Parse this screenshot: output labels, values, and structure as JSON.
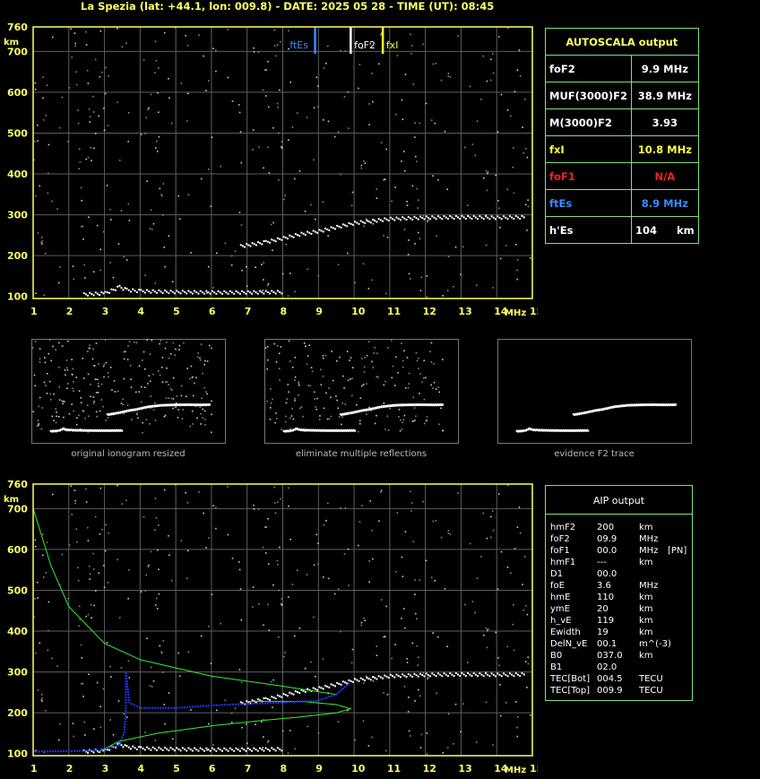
{
  "header": "La Spezia (lat: +44.1, lon: 009.8) - DATE: 2025 05 28 - TIME (UT): 08:45",
  "colors": {
    "axis": "#ffff66",
    "panel_border": "#7fe07f",
    "grid": "#5e5e5e",
    "ftEs": "#3a8cff",
    "foF2": "#ffffff",
    "fxI": "#ffff33",
    "foF1": "#ff2020",
    "profile_green": "#33ee33",
    "profile_blue": "#2233ff"
  },
  "plot_labels": {
    "km": "km",
    "mhz": "MHz",
    "ftEs": "ftEs",
    "foF2": "foF2",
    "fxI": "fxI"
  },
  "autoscala": {
    "title": "AUTOSCALA output",
    "rows": [
      {
        "label": "foF2",
        "value": "9.9 MHz",
        "color": "#ffffff"
      },
      {
        "label": "MUF(3000)F2",
        "value": "38.9 MHz",
        "color": "#ffffff"
      },
      {
        "label": "M(3000)F2",
        "value": "3.93",
        "color": "#ffffff"
      },
      {
        "label": "fxI",
        "value": "10.8 MHz",
        "color": "#ffff44"
      },
      {
        "label": "foF1",
        "value": "N/A",
        "color": "#ff2020"
      },
      {
        "label": "ftEs",
        "value": "8.9 MHz",
        "color": "#3a8cff"
      },
      {
        "label": "h'Es",
        "value": "104",
        "unit": "km",
        "color": "#ffffff"
      }
    ]
  },
  "thumb_captions": [
    "original ionogram resized",
    "eliminate multiple reflections",
    "evidence F2 trace"
  ],
  "aip": {
    "title": "AIP output",
    "rows": [
      [
        "hmF2",
        "200",
        "km",
        ""
      ],
      [
        "foF2",
        "09.9",
        "MHz",
        ""
      ],
      [
        "foF1",
        "00.0",
        "MHz",
        "[PN]"
      ],
      [
        "hmF1",
        "---",
        "km",
        ""
      ],
      [
        "D1",
        "00.0",
        "",
        ""
      ],
      [
        "foE",
        "3.6",
        "MHz",
        ""
      ],
      [
        "hmE",
        "110",
        "km",
        ""
      ],
      [
        "ymE",
        "20",
        "km",
        ""
      ],
      [
        "h_vE",
        "119",
        "km",
        ""
      ],
      [
        "Ewidth",
        "19",
        "km",
        ""
      ],
      [
        "DelN_vE",
        "00.1",
        "m^(-3)",
        ""
      ],
      [
        "B0",
        "037.0",
        "km",
        ""
      ],
      [
        "B1",
        "02.0",
        "",
        ""
      ],
      [
        "TEC[Bot]",
        "004.5",
        "TECU",
        ""
      ],
      [
        "TEC[Top]",
        "009.9",
        "TECU",
        ""
      ]
    ]
  },
  "chart_data": [
    {
      "type": "scatter",
      "title": "",
      "xlabel": "MHz",
      "ylabel": "km",
      "xlim": [
        1,
        15
      ],
      "ylim": [
        95,
        760
      ],
      "x_ticks": [
        1,
        2,
        3,
        4,
        5,
        6,
        7,
        8,
        9,
        10,
        11,
        12,
        13,
        14,
        15
      ],
      "y_ticks": [
        100,
        200,
        300,
        400,
        500,
        600,
        700,
        760
      ],
      "grid": true,
      "markers": [
        {
          "name": "ftEs",
          "x": 8.9
        },
        {
          "name": "foF2",
          "x": 9.9
        },
        {
          "name": "fxI",
          "x": 10.8
        }
      ],
      "series": [
        {
          "points": [
            [
              2.4,
              107
            ],
            [
              3.0,
              110
            ],
            [
              3.4,
              125
            ],
            [
              3.6,
              118
            ],
            [
              4.0,
              115
            ],
            [
              5.0,
              113
            ],
            [
              6.0,
              112
            ],
            [
              7.0,
              112
            ],
            [
              8.0,
              113
            ]
          ]
        },
        {
          "points": [
            [
              6.8,
              225
            ],
            [
              7.5,
              235
            ],
            [
              8.0,
              245
            ],
            [
              8.5,
              255
            ],
            [
              9.0,
              262
            ],
            [
              9.5,
              272
            ],
            [
              10.0,
              282
            ],
            [
              11.0,
              292
            ],
            [
              12.0,
              295
            ],
            [
              13.0,
              296
            ],
            [
              14.0,
              295
            ],
            [
              14.8,
              296
            ]
          ]
        }
      ]
    },
    {
      "type": "line",
      "title": "",
      "xlabel": "MHz",
      "ylabel": "km",
      "xlim": [
        1,
        15
      ],
      "ylim": [
        95,
        760
      ],
      "grid": true,
      "series": [
        {
          "points": [
            [
              1.0,
              700
            ],
            [
              1.5,
              560
            ],
            [
              2.0,
              460
            ],
            [
              3.0,
              370
            ],
            [
              4.0,
              330
            ],
            [
              6.0,
              290
            ],
            [
              8.0,
              265
            ],
            [
              9.5,
              245
            ]
          ]
        },
        {
          "points": [
            [
              2.8,
              103
            ],
            [
              3.4,
              130
            ],
            [
              4.5,
              150
            ],
            [
              6.0,
              168
            ],
            [
              7.5,
              182
            ],
            [
              8.5,
              190
            ],
            [
              9.5,
              200
            ],
            [
              9.9,
              210
            ],
            [
              9.5,
              220
            ],
            [
              8.5,
              228
            ],
            [
              7.0,
              228
            ]
          ]
        },
        {
          "points": [
            [
              1.0,
              105
            ],
            [
              2.0,
              106
            ],
            [
              2.8,
              108
            ],
            [
              3.4,
              120
            ],
            [
              3.55,
              150
            ],
            [
              3.6,
              200
            ],
            [
              3.6,
              300
            ],
            [
              3.7,
              225
            ],
            [
              4.0,
              212
            ],
            [
              5.0,
              212
            ],
            [
              6.0,
              218
            ],
            [
              7.0,
              222
            ],
            [
              8.0,
              225
            ],
            [
              9.0,
              230
            ],
            [
              9.5,
              245
            ],
            [
              9.9,
              275
            ]
          ]
        }
      ]
    }
  ]
}
